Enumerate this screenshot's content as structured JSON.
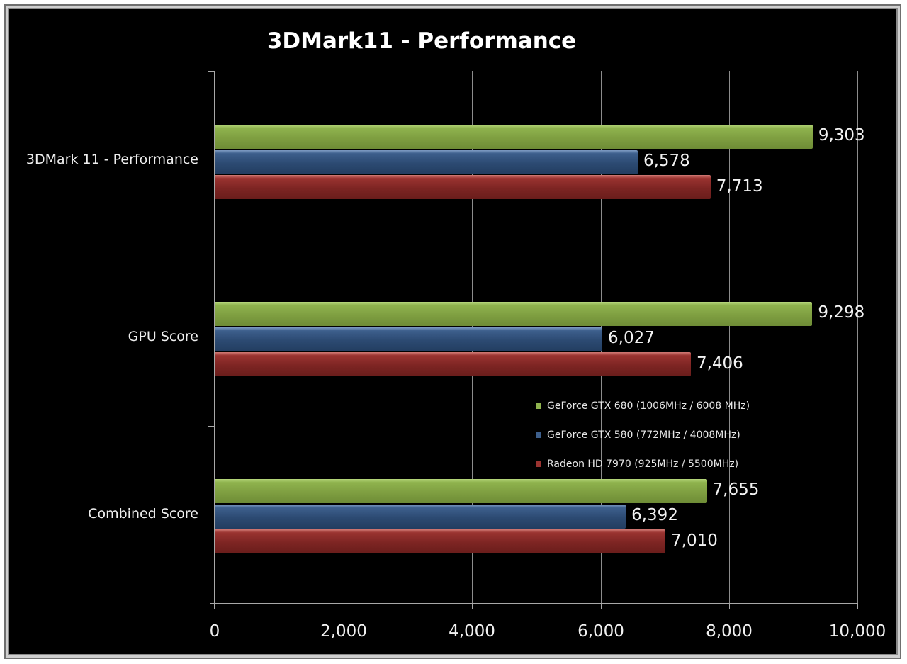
{
  "chart_data": {
    "type": "bar",
    "orientation": "horizontal",
    "title": "3DMark11 - Performance",
    "xlabel": "",
    "ylabel": "",
    "xlim": [
      0,
      10000
    ],
    "x_ticks": [
      "0",
      "2,000",
      "4,000",
      "6,000",
      "8,000",
      "10,000"
    ],
    "grid": true,
    "legend_position": "inside-right",
    "categories": [
      "3DMark 11 - Performance",
      "GPU Score",
      "Combined Score"
    ],
    "series": [
      {
        "name": "GeForce GTX 680 (1006MHz / 6008 MHz)",
        "color": "#8fb34e",
        "values": [
          9303,
          9298,
          7655
        ],
        "labels": [
          "9,303",
          "9,298",
          "7,655"
        ]
      },
      {
        "name": "GeForce GTX 580 (772MHz / 4008MHz)",
        "color": "#3d5f8c",
        "values": [
          6578,
          6027,
          6392
        ],
        "labels": [
          "6,578",
          "6,027",
          "6,392"
        ]
      },
      {
        "name": "Radeon HD 7970 (925MHz / 5500MHz)",
        "color": "#9a3330",
        "values": [
          7713,
          7406,
          7010
        ],
        "labels": [
          "7,713",
          "7,406",
          "7,010"
        ]
      }
    ]
  }
}
